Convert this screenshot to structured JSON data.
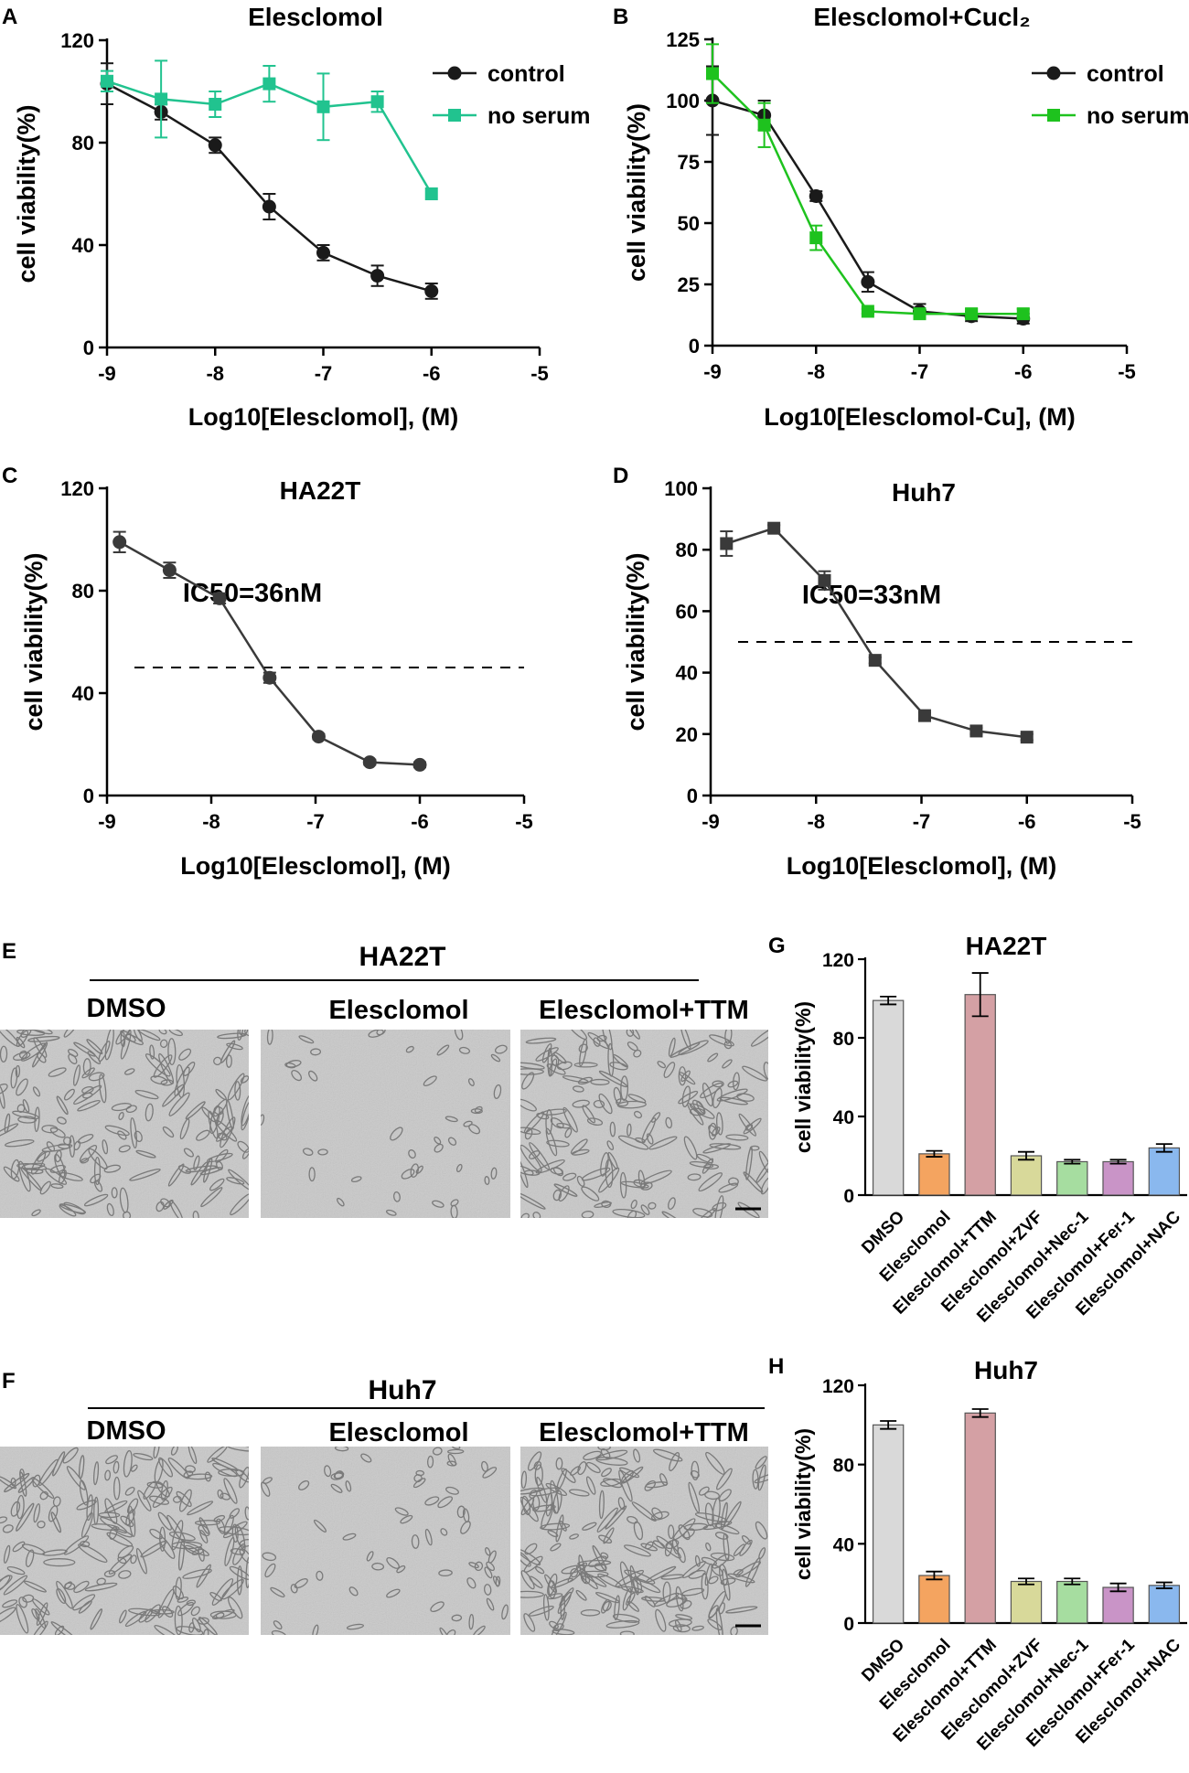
{
  "panel_letters": {
    "A": "A",
    "B": "B",
    "C": "C",
    "D": "D",
    "E": "E",
    "F": "F",
    "G": "G",
    "H": "H"
  },
  "colors": {
    "control": "#1a1a1a",
    "no_serum_A": "#21c38f",
    "no_serum_B": "#1ec21e",
    "ic50_series": "#3a3a3a",
    "bars": [
      "#d9d9d9",
      "#f4a460",
      "#d4a0a4",
      "#d8d99a",
      "#a6dda0",
      "#c994c7",
      "#8ab8ee"
    ]
  },
  "micrographs": {
    "E": {
      "group_label": "HA22T",
      "conditions": [
        "DMSO",
        "Elesclomol",
        "Elesclomol+TTM"
      ]
    },
    "F": {
      "group_label": "Huh7",
      "conditions": [
        "DMSO",
        "Elesclomol",
        "Elesclomol+TTM"
      ]
    }
  },
  "chart_data": [
    {
      "id": "A",
      "type": "line",
      "title": "Elesclomol",
      "xlabel": "Log10[Elesclomol], (M)",
      "ylabel": "cell viability(%)",
      "xlim": [
        -9,
        -5
      ],
      "ylim": [
        0,
        120
      ],
      "xticks": [
        -9,
        -8,
        -7,
        -6,
        -5
      ],
      "yticks": [
        0,
        40,
        80,
        120
      ],
      "legend_position": "top-right",
      "series": [
        {
          "name": "control",
          "marker": "circle",
          "color_key": "control",
          "x": [
            -9,
            -8.5,
            -8,
            -7.5,
            -7,
            -6.5,
            -6
          ],
          "y": [
            103,
            92,
            79,
            55,
            37,
            28,
            22
          ],
          "err": [
            8,
            3,
            3,
            5,
            3,
            4,
            3
          ]
        },
        {
          "name": "no serum",
          "marker": "square",
          "color_key": "no_serum_A",
          "x": [
            -9,
            -8.5,
            -8,
            -7.5,
            -7,
            -6.5,
            -6
          ],
          "y": [
            104,
            97,
            95,
            103,
            94,
            96,
            60
          ],
          "err": [
            4,
            15,
            5,
            7,
            13,
            4,
            0
          ]
        }
      ]
    },
    {
      "id": "B",
      "type": "line",
      "title": "Elesclomol+Cucl₂",
      "xlabel": "Log10[Elesclomol-Cu], (M)",
      "ylabel": "cell viability(%)",
      "xlim": [
        -9,
        -5
      ],
      "ylim": [
        0,
        125
      ],
      "xticks": [
        -9,
        -8,
        -7,
        -6,
        -5
      ],
      "yticks": [
        0,
        25,
        50,
        75,
        100,
        125
      ],
      "legend_position": "top-right",
      "series": [
        {
          "name": "control",
          "marker": "circle",
          "color_key": "control",
          "x": [
            -9,
            -8.5,
            -8,
            -7.5,
            -7,
            -6.5,
            -6
          ],
          "y": [
            100,
            94,
            61,
            26,
            14,
            12,
            11
          ],
          "err": [
            14,
            6,
            2,
            4,
            3,
            2,
            2
          ]
        },
        {
          "name": "no serum",
          "marker": "square",
          "color_key": "no_serum_B",
          "x": [
            -9,
            -8.5,
            -8,
            -7.5,
            -7,
            -6.5,
            -6
          ],
          "y": [
            111,
            90,
            44,
            14,
            13,
            13,
            13
          ],
          "err": [
            12,
            9,
            5,
            1,
            2,
            2,
            2
          ]
        }
      ]
    },
    {
      "id": "C",
      "type": "line",
      "title": "HA22T",
      "annotation": "IC50=36nM",
      "xlabel": "Log10[Elesclomol], (M)",
      "ylabel": "cell viability(%)",
      "xlim": [
        -9,
        -5
      ],
      "ylim": [
        0,
        120
      ],
      "xticks": [
        -9,
        -8,
        -7,
        -6,
        -5
      ],
      "yticks": [
        0,
        40,
        80,
        120
      ],
      "reference_line_y": 50,
      "series": [
        {
          "marker": "circle",
          "color_key": "ic50_series",
          "x": [
            -8.88,
            -8.4,
            -7.92,
            -7.44,
            -6.97,
            -6.48,
            -6
          ],
          "y": [
            99,
            88,
            77,
            46,
            23,
            13,
            12
          ],
          "err": [
            4,
            3,
            2,
            2,
            1,
            1,
            1
          ]
        }
      ]
    },
    {
      "id": "D",
      "type": "line",
      "title": "Huh7",
      "annotation": "IC50=33nM",
      "xlabel": "Log10[Elesclomol], (M)",
      "ylabel": "cell viability(%)",
      "xlim": [
        -9,
        -5
      ],
      "ylim": [
        0,
        100
      ],
      "xticks": [
        -9,
        -8,
        -7,
        -6,
        -5
      ],
      "yticks": [
        0,
        20,
        40,
        60,
        80,
        100
      ],
      "reference_line_y": 50,
      "series": [
        {
          "marker": "square",
          "color_key": "ic50_series",
          "x": [
            -8.85,
            -8.4,
            -7.92,
            -7.44,
            -6.97,
            -6.48,
            -6
          ],
          "y": [
            82,
            87,
            70,
            44,
            26,
            21,
            19
          ],
          "err": [
            4,
            1,
            3,
            1,
            1,
            1,
            1
          ]
        }
      ]
    },
    {
      "id": "G",
      "type": "bar",
      "title": "HA22T",
      "ylabel": "cell viability(%)",
      "ylim": [
        0,
        120
      ],
      "yticks": [
        0,
        40,
        80,
        120
      ],
      "categories": [
        "DMSO",
        "Elesclomol",
        "Elesclomol+TTM",
        "Elesclomol+ZVF",
        "Elesclomol+Nec-1",
        "Elesclomol+Fer-1",
        "Elesclomol+NAC"
      ],
      "values": [
        99,
        21,
        102,
        20,
        17,
        17,
        24
      ],
      "err": [
        2,
        1.5,
        11,
        2,
        1,
        1,
        2
      ]
    },
    {
      "id": "H",
      "type": "bar",
      "title": "Huh7",
      "ylabel": "cell viability(%)",
      "ylim": [
        0,
        120
      ],
      "yticks": [
        0,
        40,
        80,
        120
      ],
      "categories": [
        "DMSO",
        "Elesclomol",
        "Elesclomol+TTM",
        "Elesclomol+ZVF",
        "Elesclomol+Nec-1",
        "Elesclomol+Fer-1",
        "Elesclomol+NAC"
      ],
      "values": [
        100,
        24,
        106,
        21,
        21,
        18,
        19
      ],
      "err": [
        2,
        2,
        2,
        1.5,
        1.5,
        2,
        1.5
      ]
    }
  ]
}
